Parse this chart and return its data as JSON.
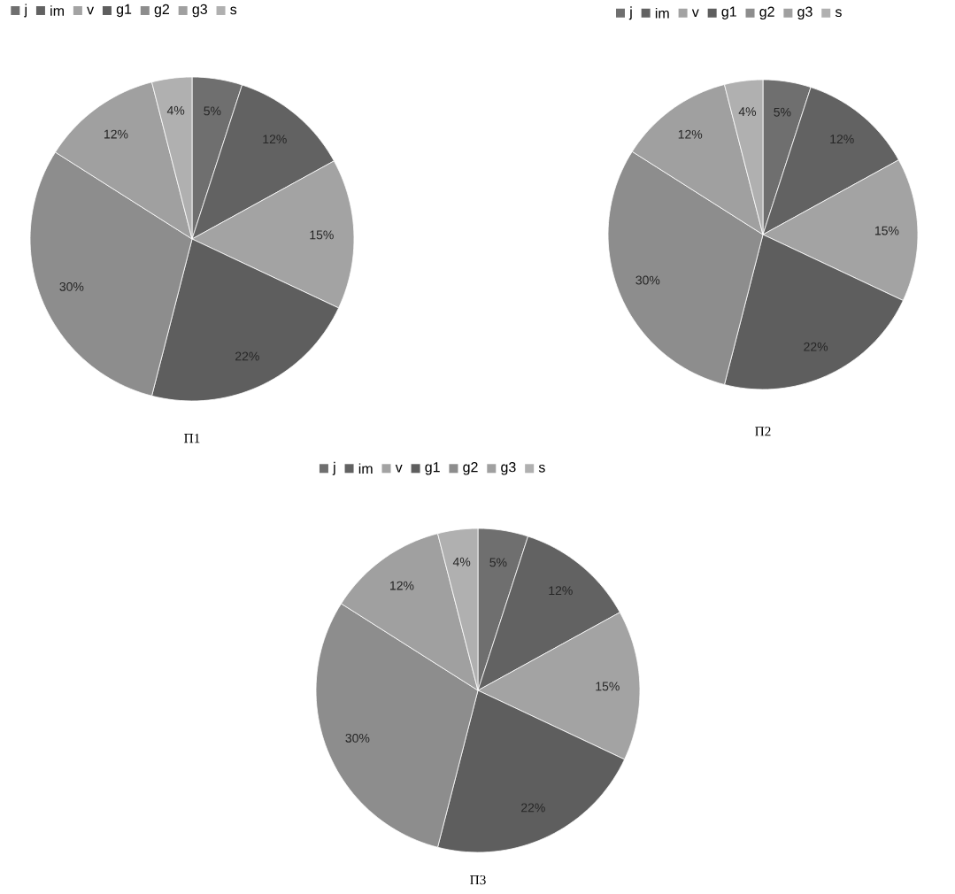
{
  "chart_data": [
    {
      "type": "pie",
      "title": "П1",
      "legend": "top",
      "categories": [
        "j",
        "im",
        "v",
        "g1",
        "g2",
        "g3",
        "s"
      ],
      "values": [
        5,
        12,
        15,
        22,
        30,
        12,
        4
      ],
      "value_labels": [
        "5%",
        "12%",
        "15%",
        "22%",
        "30%",
        "12%",
        "4%"
      ],
      "colors": [
        "#6f6f6f",
        "#626262",
        "#a3a3a3",
        "#5e5e5e",
        "#8d8d8d",
        "#a0a0a0",
        "#b0b0b0"
      ]
    },
    {
      "type": "pie",
      "title": "П2",
      "legend": "top",
      "categories": [
        "j",
        "im",
        "v",
        "g1",
        "g2",
        "g3",
        "s"
      ],
      "values": [
        5,
        12,
        15,
        22,
        30,
        12,
        4
      ],
      "value_labels": [
        "5%",
        "12%",
        "15%",
        "22%",
        "30%",
        "12%",
        "4%"
      ],
      "colors": [
        "#6f6f6f",
        "#626262",
        "#a3a3a3",
        "#5e5e5e",
        "#8d8d8d",
        "#a0a0a0",
        "#b0b0b0"
      ]
    },
    {
      "type": "pie",
      "title": "П3",
      "legend": "top",
      "categories": [
        "j",
        "im",
        "v",
        "g1",
        "g2",
        "g3",
        "s"
      ],
      "values": [
        5,
        12,
        15,
        22,
        30,
        12,
        4
      ],
      "value_labels": [
        "5%",
        "12%",
        "15%",
        "22%",
        "30%",
        "12%",
        "4%"
      ],
      "colors": [
        "#6f6f6f",
        "#626262",
        "#a3a3a3",
        "#5e5e5e",
        "#8d8d8d",
        "#a0a0a0",
        "#b0b0b0"
      ]
    }
  ]
}
